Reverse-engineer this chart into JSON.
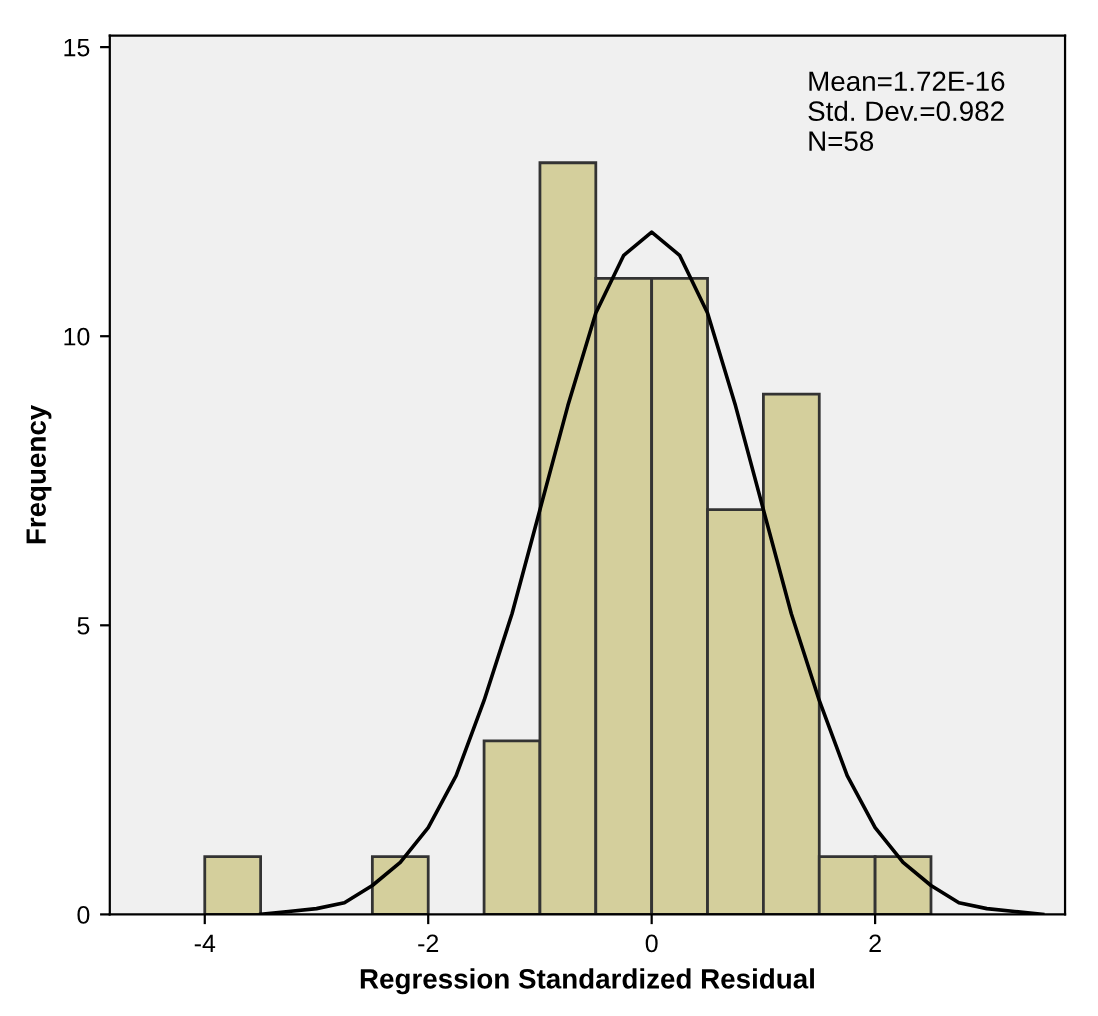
{
  "chart_data": {
    "type": "histogram",
    "xlabel": "Regression Standardized Residual",
    "ylabel": "Frequency",
    "bins": [
      -4,
      -3.5,
      -3,
      -2.5,
      -2,
      -1.5,
      -1,
      -0.5,
      0,
      0.5,
      1,
      1.5,
      2,
      2.5
    ],
    "values": [
      1,
      0,
      0,
      1,
      0,
      3,
      13,
      11,
      11,
      7,
      9,
      1,
      1
    ],
    "color": "#d4cf9c",
    "series": [
      {
        "type": "line",
        "color": "#000000",
        "x": [
          -3.5,
          -3.25,
          -3,
          -2.75,
          -2.5,
          -2.25,
          -2,
          -1.75,
          -1.5,
          -1.25,
          -1,
          -0.75,
          -0.5,
          -0.25,
          0,
          0.25,
          0.5,
          0.75,
          1,
          1.25,
          1.5,
          1.75,
          2,
          2.25,
          2.5,
          2.75,
          3,
          3.25,
          3.5
        ],
        "values": [
          0.0,
          0.05,
          0.1,
          0.2,
          0.5,
          0.9,
          1.5,
          2.4,
          3.7,
          5.2,
          7.0,
          8.8,
          10.4,
          11.4,
          11.8,
          11.4,
          10.4,
          8.8,
          7.0,
          5.2,
          3.7,
          2.4,
          1.5,
          0.9,
          0.5,
          0.2,
          0.1,
          0.05,
          0.0
        ]
      }
    ],
    "xlim": [
      -4.85,
      3.7
    ],
    "ylim": [
      0,
      15.2
    ],
    "xticks": [
      -4,
      -2,
      0,
      2
    ],
    "yticks": [
      0,
      5,
      10,
      15
    ],
    "grid": false,
    "legend": false,
    "annotations": [
      "Mean=1.72E-16\nStd. Dev.=0.982\nN=58"
    ]
  }
}
